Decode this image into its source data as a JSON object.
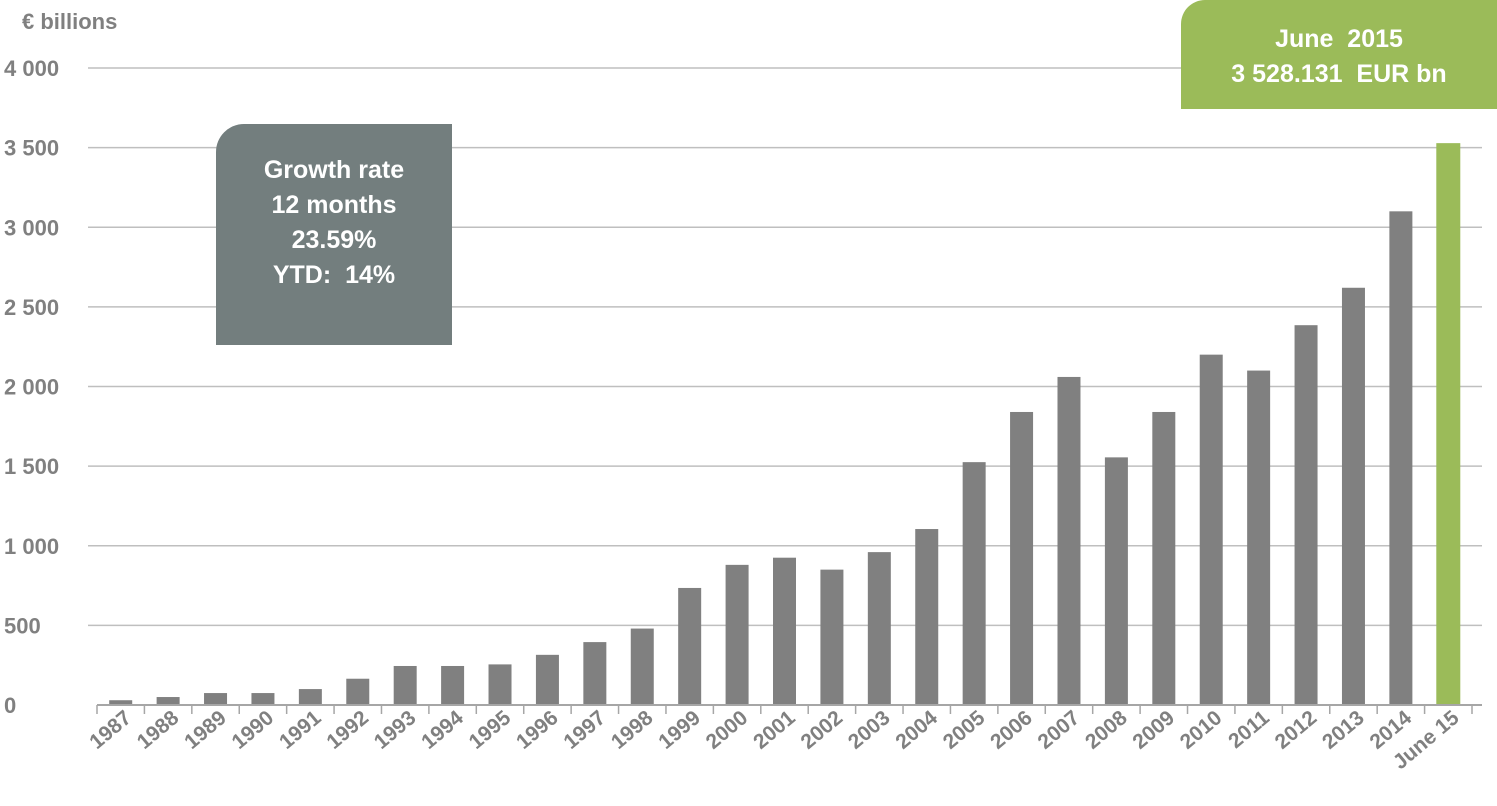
{
  "chart_data": {
    "type": "bar",
    "ylabel": "€ billions",
    "ylim": [
      0,
      4000
    ],
    "yticks": [
      0,
      500,
      1000,
      1500,
      2000,
      2500,
      3000,
      3500,
      4000
    ],
    "ytick_labels": [
      "0",
      "500",
      "1 000",
      "1 500",
      "2 000",
      "2 500",
      "3 000",
      "3 500",
      "4 000"
    ],
    "categories": [
      "1987",
      "1988",
      "1989",
      "1990",
      "1991",
      "1992",
      "1993",
      "1994",
      "1995",
      "1996",
      "1997",
      "1998",
      "1999",
      "2000",
      "2001",
      "2002",
      "2003",
      "2004",
      "2005",
      "2006",
      "2007",
      "2008",
      "2009",
      "2010",
      "2011",
      "2012",
      "2013",
      "2014",
      "June 15"
    ],
    "values": [
      30,
      50,
      75,
      75,
      100,
      165,
      245,
      245,
      255,
      315,
      395,
      480,
      735,
      880,
      925,
      850,
      960,
      1105,
      1525,
      1840,
      2060,
      1555,
      1840,
      2200,
      2100,
      2385,
      2620,
      3100,
      3528.131
    ],
    "grid": true,
    "colors": {
      "default": "#808080",
      "highlight": "#9bbb59",
      "highlight_index": 28,
      "grid": "#bfbfbf",
      "text": "#808080"
    },
    "annotations": [
      {
        "id": "growth",
        "lines": [
          "Growth rate",
          "12 months",
          "23.59%",
          "YTD:  14%"
        ],
        "color": "#737e7e"
      },
      {
        "id": "latest",
        "lines": [
          "June  2015",
          "3 528.131  EUR bn"
        ],
        "color": "#9bbb59"
      }
    ]
  }
}
